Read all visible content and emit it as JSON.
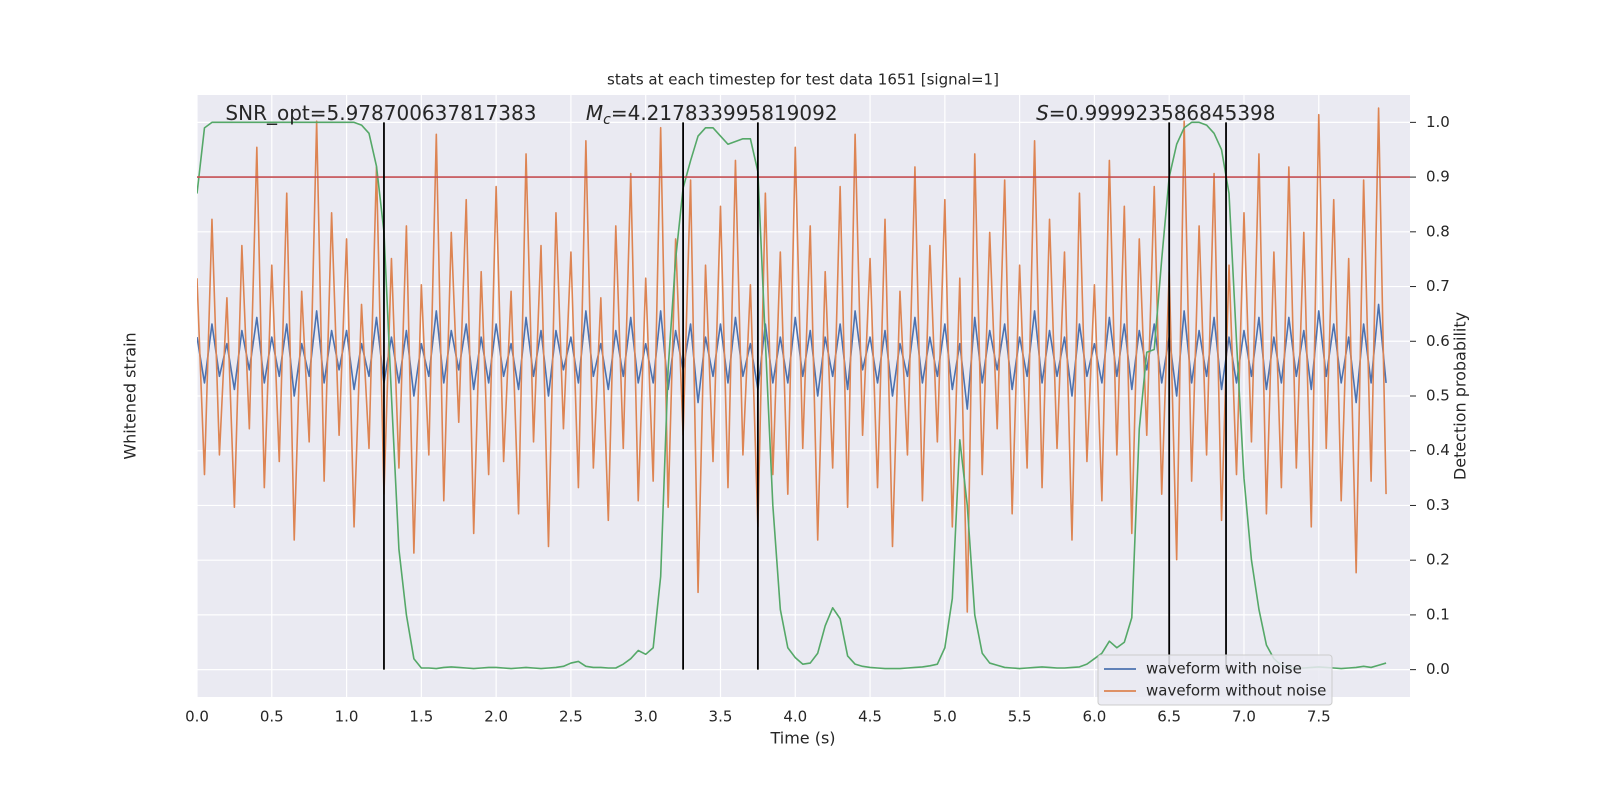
{
  "chart_data": {
    "type": "line",
    "title": "stats at each timestep for test data 1651 [signal=1]",
    "xlabel": "Time (s)",
    "ylabel": "Whitened strain",
    "y2label": "Detection probability",
    "xlim": [
      0,
      8.11
    ],
    "ylim": [
      -5.2,
      4
    ],
    "y2lim": [
      -0.05,
      1.05
    ],
    "xticks": [
      {
        "value": 0,
        "label": "0.0"
      },
      0.5,
      {
        "value": 1,
        "label": "1.0"
      },
      1.5,
      {
        "value": 2,
        "label": "2.0"
      },
      2.5,
      {
        "value": 3,
        "label": "3.0"
      },
      3.5,
      {
        "value": 4,
        "label": "4.0"
      },
      4.5,
      {
        "value": 5,
        "label": "5.0"
      },
      5.5,
      {
        "value": 6,
        "label": "6.0"
      },
      6.5,
      {
        "value": 7,
        "label": "7.0"
      },
      7.5
    ],
    "y2ticks": [
      {
        "value": 0,
        "label": "0.0"
      },
      0.1,
      0.2,
      0.3,
      0.4,
      0.5,
      0.6,
      0.7,
      0.8,
      0.9,
      {
        "value": 1,
        "label": "1.0"
      }
    ],
    "grid": true,
    "legend": "lower right",
    "threshold": 0.9,
    "threshold_color": "#c44e52",
    "markers": [
      1.25,
      3.25,
      3.75,
      6.5,
      6.88
    ],
    "marker_color": "#000000",
    "annotations": [
      {
        "x": 0.19,
        "parts": [
          {
            "text": "SNR_opt=5.978700637817383",
            "style": "normal"
          }
        ]
      },
      {
        "x": 2.6,
        "parts": [
          {
            "text": "M",
            "style": "italic"
          },
          {
            "text": "c",
            "style": "sub"
          },
          {
            "text": "=4.217833995819092",
            "style": "normal"
          }
        ]
      },
      {
        "x": 5.61,
        "parts": [
          {
            "text": "S",
            "style": "italic"
          },
          {
            "text": "=0.999923586845398",
            "style": "normal"
          }
        ]
      }
    ],
    "x": [
      0,
      0.05,
      0.1,
      0.15,
      0.2,
      0.25,
      0.3,
      0.35,
      0.4,
      0.45,
      0.5,
      0.55,
      0.6,
      0.65,
      0.7,
      0.75,
      0.8,
      0.85,
      0.9,
      0.95,
      1,
      1.05,
      1.1,
      1.15,
      1.2,
      1.25,
      1.3,
      1.35,
      1.4,
      1.45,
      1.5,
      1.55,
      1.6,
      1.65,
      1.7,
      1.75,
      1.8,
      1.85,
      1.9,
      1.95,
      2,
      2.05,
      2.1,
      2.15,
      2.2,
      2.25,
      2.3,
      2.35,
      2.4,
      2.45,
      2.5,
      2.55,
      2.6,
      2.65,
      2.7,
      2.75,
      2.8,
      2.85,
      2.9,
      2.95,
      3,
      3.05,
      3.1,
      3.15,
      3.2,
      3.25,
      3.3,
      3.35,
      3.4,
      3.45,
      3.5,
      3.55,
      3.6,
      3.65,
      3.7,
      3.75,
      3.8,
      3.85,
      3.9,
      3.95,
      4,
      4.05,
      4.1,
      4.15,
      4.2,
      4.25,
      4.3,
      4.35,
      4.4,
      4.45,
      4.5,
      4.55,
      4.6,
      4.65,
      4.7,
      4.75,
      4.8,
      4.85,
      4.9,
      4.95,
      5,
      5.05,
      5.1,
      5.15,
      5.2,
      5.25,
      5.3,
      5.35,
      5.4,
      5.45,
      5.5,
      5.55,
      5.6,
      5.65,
      5.7,
      5.75,
      5.8,
      5.85,
      5.9,
      5.95,
      6,
      6.05,
      6.1,
      6.15,
      6.2,
      6.25,
      6.3,
      6.35,
      6.4,
      6.45,
      6.5,
      6.55,
      6.6,
      6.65,
      6.7,
      6.75,
      6.8,
      6.85,
      6.9,
      6.95,
      7,
      7.05,
      7.1,
      7.15,
      7.2,
      7.25,
      7.3,
      7.35,
      7.4,
      7.45,
      7.5,
      7.55,
      7.6,
      7.65,
      7.7,
      7.75,
      7.8,
      7.85,
      7.9,
      7.95
    ],
    "series": [
      {
        "name": "waveform with noise",
        "color": "#4c72b0",
        "axis": "y",
        "values": [
          0.3,
          -0.4,
          0.5,
          -0.3,
          0.2,
          -0.5,
          0.4,
          -0.2,
          0.6,
          -0.4,
          0.3,
          -0.3,
          0.5,
          -0.6,
          0.2,
          -0.3,
          0.7,
          -0.4,
          0.4,
          -0.2,
          0.4,
          -0.5,
          0.2,
          -0.3,
          0.6,
          -0.4,
          0.3,
          -0.4,
          0.4,
          -0.6,
          0.2,
          -0.3,
          0.7,
          -0.4,
          0.4,
          -0.2,
          0.5,
          -0.5,
          0.3,
          -0.4,
          0.5,
          -0.3,
          0.2,
          -0.5,
          0.6,
          -0.3,
          0.4,
          -0.6,
          0.4,
          -0.2,
          0.3,
          -0.4,
          0.7,
          -0.3,
          0.2,
          -0.5,
          0.4,
          -0.3,
          0.6,
          -0.4,
          0.2,
          -0.4,
          0.7,
          -0.5,
          0.4,
          -0.2,
          0.5,
          -0.7,
          0.3,
          -0.3,
          0.5,
          -0.4,
          0.6,
          -0.3,
          0.2,
          -0.5,
          0.5,
          -0.4,
          0.3,
          -0.4,
          0.6,
          -0.3,
          0.4,
          -0.6,
          0.3,
          -0.3,
          0.5,
          -0.5,
          0.7,
          -0.2,
          0.3,
          -0.4,
          0.4,
          -0.6,
          0.2,
          -0.3,
          0.6,
          -0.4,
          0.3,
          -0.3,
          0.5,
          -0.5,
          0.2,
          -0.8,
          0.6,
          -0.4,
          0.4,
          -0.2,
          0.5,
          -0.5,
          0.3,
          -0.3,
          0.7,
          -0.4,
          0.4,
          -0.3,
          0.3,
          -0.6,
          0.5,
          -0.3,
          0.2,
          -0.4,
          0.6,
          -0.3,
          0.5,
          -0.5,
          0.4,
          -0.2,
          0.5,
          -0.4,
          0.3,
          -0.6,
          0.7,
          -0.4,
          0.4,
          -0.3,
          0.6,
          -0.5,
          0.3,
          -0.4,
          0.4,
          -0.3,
          0.6,
          -0.5,
          0.3,
          -0.4,
          0.6,
          -0.3,
          0.4,
          -0.5,
          0.7,
          -0.3,
          0.5,
          -0.4,
          0.3,
          -0.7,
          0.5,
          -0.4,
          0.8,
          -0.4
        ]
      },
      {
        "name": "waveform without noise",
        "color": "#dd8452",
        "axis": "y",
        "values": [
          1.2,
          -1.8,
          2.1,
          -1.5,
          0.9,
          -2.3,
          1.7,
          -1.1,
          3.2,
          -2.0,
          1.4,
          -1.6,
          2.5,
          -2.8,
          1.0,
          -1.3,
          3.6,
          -1.9,
          2.2,
          -1.2,
          1.8,
          -2.6,
          0.8,
          -1.4,
          2.9,
          -2.1,
          1.5,
          -1.7,
          2.0,
          -3.0,
          1.1,
          -1.5,
          3.4,
          -2.2,
          1.9,
          -1.0,
          2.4,
          -2.7,
          1.3,
          -1.8,
          2.6,
          -1.6,
          1.0,
          -2.4,
          3.1,
          -1.3,
          1.7,
          -2.9,
          2.2,
          -1.1,
          1.6,
          -2.0,
          3.3,
          -1.7,
          0.9,
          -2.5,
          2.0,
          -1.4,
          2.8,
          -2.2,
          1.2,
          -1.9,
          3.5,
          -2.3,
          1.8,
          -1.2,
          2.7,
          -3.6,
          1.4,
          -1.6,
          2.3,
          -2.0,
          3.0,
          -1.5,
          1.1,
          -2.6,
          2.5,
          -1.8,
          1.6,
          -2.1,
          3.2,
          -1.4,
          2.0,
          -2.8,
          1.3,
          -1.7,
          2.6,
          -2.3,
          3.4,
          -1.2,
          1.5,
          -2.0,
          2.1,
          -2.9,
          1.0,
          -1.5,
          2.9,
          -2.2,
          1.7,
          -1.3,
          2.4,
          -2.6,
          1.2,
          -3.9,
          3.1,
          -1.8,
          1.9,
          -1.1,
          2.7,
          -2.4,
          1.4,
          -1.7,
          3.3,
          -2.0,
          2.1,
          -1.4,
          1.6,
          -2.8,
          2.5,
          -1.6,
          1.1,
          -2.2,
          3.0,
          -1.5,
          2.3,
          -2.7,
          1.8,
          -1.2,
          2.6,
          -2.1,
          1.3,
          -3.1,
          3.6,
          -1.9,
          2.0,
          -1.5,
          2.8,
          -2.5,
          1.4,
          -1.8,
          2.2,
          -1.3,
          3.1,
          -2.4,
          1.6,
          -2.0,
          2.9,
          -1.7,
          1.9,
          -2.6,
          3.7,
          -1.4,
          2.4,
          -2.2,
          1.5,
          -3.3,
          2.7,
          -1.9,
          3.8,
          -2.1
        ]
      },
      {
        "color": "#55a868",
        "axis": "y2",
        "values": [
          0.87,
          0.99,
          1.0,
          1.0,
          1.0,
          1.0,
          1.0,
          1.0,
          1.0,
          1.0,
          1.0,
          1.0,
          1.0,
          1.0,
          1.0,
          1.0,
          1.0,
          1.0,
          1.0,
          1.0,
          1.0,
          1.0,
          0.995,
          0.98,
          0.92,
          0.8,
          0.5,
          0.22,
          0.1,
          0.02,
          0.003,
          0.003,
          0.002,
          0.004,
          0.005,
          0.004,
          0.003,
          0.002,
          0.003,
          0.004,
          0.004,
          0.003,
          0.002,
          0.003,
          0.004,
          0.003,
          0.002,
          0.003,
          0.004,
          0.006,
          0.012,
          0.015,
          0.006,
          0.004,
          0.004,
          0.003,
          0.003,
          0.01,
          0.02,
          0.035,
          0.028,
          0.04,
          0.17,
          0.55,
          0.75,
          0.88,
          0.93,
          0.975,
          0.99,
          0.99,
          0.975,
          0.96,
          0.965,
          0.97,
          0.97,
          0.91,
          0.6,
          0.3,
          0.11,
          0.04,
          0.022,
          0.01,
          0.012,
          0.03,
          0.08,
          0.113,
          0.093,
          0.025,
          0.01,
          0.006,
          0.004,
          0.003,
          0.002,
          0.002,
          0.002,
          0.003,
          0.004,
          0.005,
          0.007,
          0.01,
          0.04,
          0.13,
          0.42,
          0.3,
          0.1,
          0.03,
          0.012,
          0.008,
          0.004,
          0.003,
          0.002,
          0.003,
          0.004,
          0.005,
          0.004,
          0.003,
          0.003,
          0.004,
          0.005,
          0.01,
          0.02,
          0.03,
          0.052,
          0.04,
          0.05,
          0.095,
          0.44,
          0.58,
          0.585,
          0.75,
          0.9,
          0.96,
          0.99,
          1.0,
          1.0,
          0.995,
          0.98,
          0.95,
          0.87,
          0.6,
          0.35,
          0.2,
          0.11,
          0.045,
          0.02,
          0.008,
          0.004,
          0.003,
          0.003,
          0.004,
          0.005,
          0.004,
          0.003,
          0.002,
          0.003,
          0.004,
          0.006,
          0.004,
          0.008,
          0.012
        ]
      }
    ]
  }
}
